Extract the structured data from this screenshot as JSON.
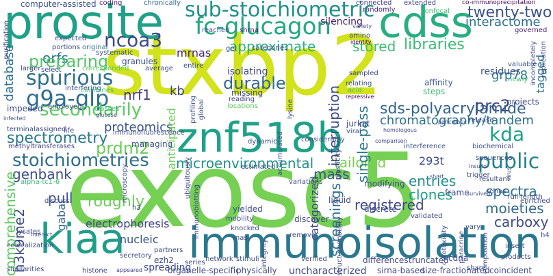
{
  "words": [
    {
      "text": "stxbp2",
      "color": "#d2e21b"
    },
    {
      "text": "exosc5",
      "color": "#75d054"
    },
    {
      "text": "prosite",
      "color": "#1fa187"
    },
    {
      "text": "znf518b",
      "color": "#1fa187"
    },
    {
      "text": "kiaa",
      "color": "#1f9e89"
    },
    {
      "text": "immunoisolation",
      "color": "#2a788e"
    },
    {
      "text": "cdss",
      "color": "#28ae80"
    },
    {
      "text": "sub-stoichiometric",
      "color": "#21918c"
    },
    {
      "text": "fc-glucagon",
      "color": "#22a884"
    },
    {
      "text": "twenty-two",
      "color": "#3b528b"
    },
    {
      "text": "ncoa3",
      "color": "#3e4a89"
    },
    {
      "text": "approximate",
      "color": "#2ab07f"
    },
    {
      "text": "interactome",
      "color": "#2c728e"
    },
    {
      "text": "orfs",
      "color": "#2a788e"
    },
    {
      "text": "mrnas",
      "color": "#482677"
    },
    {
      "text": "spurious",
      "color": "#2d708e"
    },
    {
      "text": "preparing",
      "color": "#52c569"
    },
    {
      "text": "stored",
      "color": "#3bbb75"
    },
    {
      "text": "libraries",
      "color": "#3bbb75"
    },
    {
      "text": "g9a-glp",
      "color": "#2e6e8e"
    },
    {
      "text": "secondarily",
      "color": "#5ec962"
    },
    {
      "text": "durable",
      "color": "#31688e"
    },
    {
      "text": "grp78",
      "color": "#2a788e"
    },
    {
      "text": "prc2",
      "color": "#404588"
    },
    {
      "text": "nrf1",
      "color": "#443983"
    },
    {
      "text": "kb",
      "color": "#3f4788"
    },
    {
      "text": "proteomics",
      "color": "#3b528b"
    },
    {
      "text": "sds-polyacrylamide",
      "color": "#33638d"
    },
    {
      "text": "chromatography/tandem",
      "color": "#2c728e"
    },
    {
      "text": "spectrometry",
      "color": "#2a788e"
    },
    {
      "text": "prdm2",
      "color": "#6ccd5a"
    },
    {
      "text": "kda",
      "color": "#1fa187"
    },
    {
      "text": "stoichiometries",
      "color": "#2e6e8e"
    },
    {
      "text": "microenvironmental",
      "color": "#21918c"
    },
    {
      "text": "tailored",
      "color": "#7ad151"
    },
    {
      "text": "public",
      "color": "#26828e"
    },
    {
      "text": "genbank",
      "color": "#3e4a89"
    },
    {
      "text": "mass",
      "color": "#3b528b"
    },
    {
      "text": "pull",
      "color": "#3b528b"
    },
    {
      "text": "entries",
      "color": "#21918c"
    },
    {
      "text": "spectra",
      "color": "#2c728e"
    },
    {
      "text": "clones",
      "color": "#1f9e89"
    },
    {
      "text": "roughly",
      "color": "#6ccd5a"
    },
    {
      "text": "registered",
      "color": "#3f4788"
    },
    {
      "text": "moieties",
      "color": "#31688e"
    },
    {
      "text": "carboxy",
      "color": "#3e4a89"
    },
    {
      "text": "h3k9me2",
      "color": "#3e4a89"
    },
    {
      "text": "categorized",
      "color": "#3e4a89"
    },
    {
      "text": "screenings",
      "color": "#2e6e8e"
    },
    {
      "text": "comprehensive",
      "color": "#5ec962"
    },
    {
      "text": "electrophoresis",
      "color": "#414487"
    },
    {
      "text": "gaba",
      "color": "#31688e"
    },
    {
      "text": "nucleic",
      "color": "#3b528b"
    },
    {
      "text": "database",
      "color": "#2e6e8e"
    },
    {
      "text": "anticipated",
      "color": "#6ccd5a"
    },
    {
      "text": "interruption",
      "color": "#3e4a89"
    },
    {
      "text": "single-pass",
      "color": "#2a788e"
    },
    {
      "text": "tagged",
      "color": "#2c728e"
    },
    {
      "text": "residues",
      "color": "#3b528b"
    },
    {
      "text": "293t",
      "color": "#3e4a89"
    },
    {
      "text": "computer-assisted",
      "color": "#3b528b"
    },
    {
      "text": "coding",
      "color": "#482878"
    },
    {
      "text": "chronically",
      "color": "#31688e"
    },
    {
      "text": "connected",
      "color": "#443983"
    },
    {
      "text": "extended",
      "color": "#3e4a89"
    },
    {
      "text": "co-immunoprecipitation",
      "color": "#440154"
    },
    {
      "text": "randomly",
      "color": "#472d7b"
    },
    {
      "text": "confocal",
      "color": "#3bbb75"
    },
    {
      "text": "variety",
      "color": "#3b528b"
    },
    {
      "text": "silencing",
      "color": "#481f70"
    },
    {
      "text": "governed",
      "color": "#482475"
    },
    {
      "text": "purification",
      "color": "#3e4a89"
    },
    {
      "text": "expected",
      "color": "#3b528b"
    },
    {
      "text": "portions",
      "color": "#3e4a89"
    },
    {
      "text": "original",
      "color": "#2a788e"
    },
    {
      "text": "reached",
      "color": "#3b528b"
    },
    {
      "text": "shrna",
      "color": "#482878"
    },
    {
      "text": "amino",
      "color": "#3e4a89"
    },
    {
      "text": "identity",
      "color": "#440154"
    },
    {
      "text": "categories",
      "color": "#3e4a89"
    },
    {
      "text": "gel",
      "color": "#3b528b"
    },
    {
      "text": "systematic",
      "color": "#3b528b"
    },
    {
      "text": "larger",
      "color": "#414487"
    },
    {
      "text": "select",
      "color": "#3e4a89"
    },
    {
      "text": "corresponded",
      "color": "#5ec962"
    },
    {
      "text": "granules",
      "color": "#3b528b"
    },
    {
      "text": "average",
      "color": "#3e4a89"
    },
    {
      "text": "entire",
      "color": "#3b528b"
    },
    {
      "text": "isolating",
      "color": "#3e4a89"
    },
    {
      "text": "missing",
      "color": "#3e4a89"
    },
    {
      "text": "reading",
      "color": "#3e4a89"
    },
    {
      "text": "locations",
      "color": "#5ec962"
    },
    {
      "text": "sampled",
      "color": "#3e4a89"
    },
    {
      "text": "relating",
      "color": "#3b528b"
    },
    {
      "text": "acid",
      "color": "#3bbb75"
    },
    {
      "text": "repressive",
      "color": "#440154"
    },
    {
      "text": "affinity",
      "color": "#3b528b"
    },
    {
      "text": "steps",
      "color": "#3bbb75"
    },
    {
      "text": "valuable",
      "color": "#3b528b"
    },
    {
      "text": "newly",
      "color": "#3bbb75"
    },
    {
      "text": "projects",
      "color": "#3e4a89"
    },
    {
      "text": "incompletely",
      "color": "#3e4a89"
    },
    {
      "text": "replication",
      "color": "#3e4a89"
    },
    {
      "text": "interfering",
      "color": "#3b528b"
    },
    {
      "text": "combines",
      "color": "#3bbb75"
    },
    {
      "text": "impeded",
      "color": "#3e4a89"
    },
    {
      "text": "employed",
      "color": "#414487"
    },
    {
      "text": "classes",
      "color": "#3bbb75"
    },
    {
      "text": "glucose",
      "color": "#3e4a89"
    },
    {
      "text": "immunofluorescence",
      "color": "#3e4a89"
    },
    {
      "text": "lysine",
      "color": "#3e4a89"
    },
    {
      "text": "profiling",
      "color": "#3b528b"
    },
    {
      "text": "global",
      "color": "#3e4a89"
    },
    {
      "text": "infected",
      "color": "#3e4a89"
    },
    {
      "text": "terminal",
      "color": "#3b528b"
    },
    {
      "text": "assigned",
      "color": "#3e4a89"
    },
    {
      "text": "life",
      "color": "#3e4a89"
    },
    {
      "text": "methyltransferases",
      "color": "#414487"
    },
    {
      "text": "managing",
      "color": "#3b528b"
    },
    {
      "text": "jurkat",
      "color": "#3e4a89"
    },
    {
      "text": "viral",
      "color": "#3b528b"
    },
    {
      "text": "homologous",
      "color": "#3e4a89"
    },
    {
      "text": "release",
      "color": "#3e4a89"
    },
    {
      "text": "pancreatic",
      "color": "#3e4a89"
    },
    {
      "text": "interference",
      "color": "#3b528b"
    },
    {
      "text": "biochemical",
      "color": "#3e4a89"
    },
    {
      "text": "sequences",
      "color": "#3e4a89"
    },
    {
      "text": "insulin",
      "color": "#3e4a89"
    },
    {
      "text": "trigger",
      "color": "#3e4a89"
    },
    {
      "text": "resultant",
      "color": "#3e4a89"
    },
    {
      "text": "dynamic",
      "color": "#3e4a89"
    },
    {
      "text": "accumulated",
      "color": "#3b528b"
    },
    {
      "text": "considerably",
      "color": "#3e4a89"
    },
    {
      "text": "comparison",
      "color": "#3e4a89"
    },
    {
      "text": "ubiquitously",
      "color": "#3e4a89"
    },
    {
      "text": "estimated",
      "color": "#3b528b"
    },
    {
      "text": "variations",
      "color": "#3e4a89"
    },
    {
      "text": "modifying",
      "color": "#3e4a89"
    },
    {
      "text": "liquid",
      "color": "#3e4a89"
    },
    {
      "text": "short",
      "color": "#3e4a89"
    },
    {
      "text": "frame",
      "color": "#3e4a89"
    },
    {
      "text": "survived",
      "color": "#3e4a89"
    },
    {
      "text": "cdnas",
      "color": "#3e4a89"
    },
    {
      "text": "enriched",
      "color": "#3e4a89"
    },
    {
      "text": "full-length",
      "color": "#3e4a89"
    },
    {
      "text": "alpha-tc1-6",
      "color": "#3bbb75"
    },
    {
      "text": "microscopy",
      "color": "#3e4a89"
    },
    {
      "text": "discuss",
      "color": "#3e4a89"
    },
    {
      "text": "lysates",
      "color": "#3e4a89"
    },
    {
      "text": "interact",
      "color": "#3e4a89"
    },
    {
      "text": "colocalization",
      "color": "#3e4a89"
    },
    {
      "text": "h3",
      "color": "#3e4a89"
    },
    {
      "text": "immunoblotting",
      "color": "#3e4a89"
    },
    {
      "text": "yielded",
      "color": "#3e4a89"
    },
    {
      "text": "mobility",
      "color": "#3e4a89"
    },
    {
      "text": "knocked",
      "color": "#3e4a89"
    },
    {
      "text": "rnas",
      "color": "#3e4a89"
    },
    {
      "text": "discrete",
      "color": "#3e4a89"
    },
    {
      "text": "discover",
      "color": "#3e4a89"
    },
    {
      "text": "remove",
      "color": "#3e4a89"
    },
    {
      "text": "validated",
      "color": "#3e4a89"
    },
    {
      "text": "vary",
      "color": "#3e4a89"
    },
    {
      "text": "structure/motility",
      "color": "#3e4a89"
    },
    {
      "text": "partners",
      "color": "#3e4a89"
    },
    {
      "text": "secretory",
      "color": "#3e4a89"
    },
    {
      "text": "network",
      "color": "#3e4a89"
    },
    {
      "text": "stimuli",
      "color": "#3e4a89"
    },
    {
      "text": "integrity",
      "color": "#3e4a89"
    },
    {
      "text": "verified",
      "color": "#3e4a89"
    },
    {
      "text": "differences",
      "color": "#3e4a89"
    },
    {
      "text": "truncated",
      "color": "#3e4a89"
    },
    {
      "text": "cdna",
      "color": "#3e4a89"
    },
    {
      "text": "composition",
      "color": "#3e4a89"
    },
    {
      "text": "insert",
      "color": "#3e4a89"
    },
    {
      "text": "products",
      "color": "#3e4a89"
    },
    {
      "text": "h4",
      "color": "#3e4a89"
    },
    {
      "text": "ezh2",
      "color": "#3e4a89"
    },
    {
      "text": "series",
      "color": "#3e4a89"
    },
    {
      "text": "spreading",
      "color": "#3e4a89"
    },
    {
      "text": "organelle-specific",
      "color": "#3e4a89"
    },
    {
      "text": "physically",
      "color": "#3e4a89"
    },
    {
      "text": "uncharacterized",
      "color": "#3e4a89"
    },
    {
      "text": "sirna-based",
      "color": "#3e4a89"
    },
    {
      "text": "size-fractionated",
      "color": "#3e4a89"
    },
    {
      "text": "coincident",
      "color": "#3e4a89"
    },
    {
      "text": "similarities",
      "color": "#3e4a89"
    },
    {
      "text": "histone",
      "color": "#3e4a89"
    },
    {
      "text": "appeared",
      "color": "#3e4a89"
    },
    {
      "text": "share",
      "color": "#3e4a89"
    },
    {
      "text": "cytotoxicity",
      "color": "#3e4a89"
    },
    {
      "text": "paracrine",
      "color": "#3e4a89"
    },
    {
      "text": "plasticity",
      "color": "#3e4a89"
    },
    {
      "text": "virus",
      "color": "#3e4a89"
    }
  ]
}
